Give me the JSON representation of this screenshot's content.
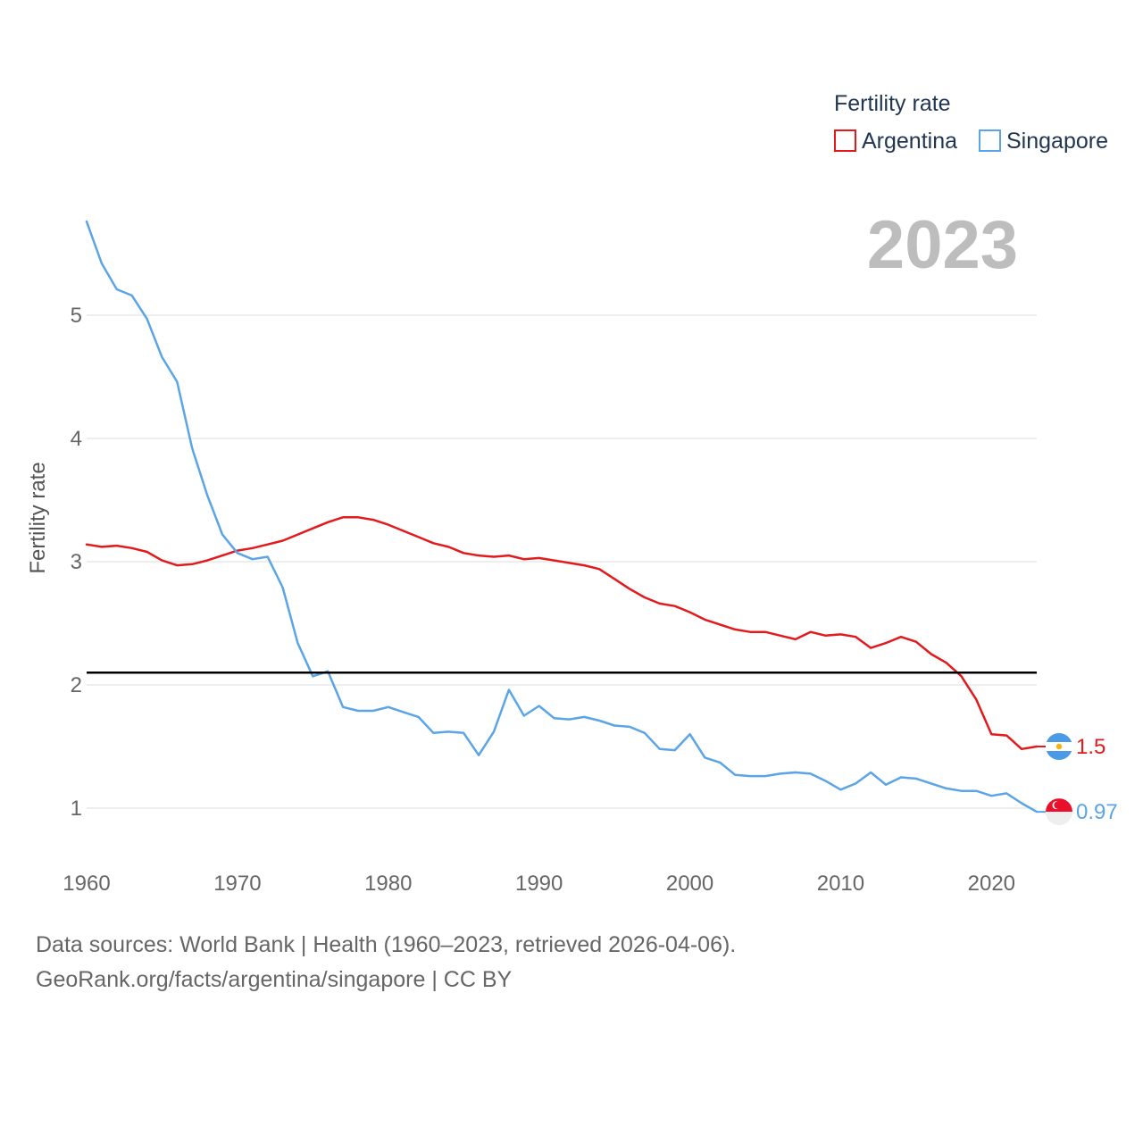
{
  "chart_data": {
    "type": "line",
    "year_label": "2023",
    "ylabel": "Fertility rate",
    "xlabel": "",
    "xlim": [
      1960,
      2023
    ],
    "ylim": [
      0.7,
      5.8
    ],
    "x_ticks": [
      "1960",
      "1970",
      "1980",
      "1990",
      "2000",
      "2010",
      "2020"
    ],
    "y_ticks": [
      "1",
      "2",
      "3",
      "4",
      "5"
    ],
    "reference_line": {
      "value": 2.1,
      "color": "#000000"
    },
    "legend": {
      "title": "Fertility rate",
      "position": "top-right"
    },
    "x": [
      1960,
      1961,
      1962,
      1963,
      1964,
      1965,
      1966,
      1967,
      1968,
      1969,
      1970,
      1971,
      1972,
      1973,
      1974,
      1975,
      1976,
      1977,
      1978,
      1979,
      1980,
      1981,
      1982,
      1983,
      1984,
      1985,
      1986,
      1987,
      1988,
      1989,
      1990,
      1991,
      1992,
      1993,
      1994,
      1995,
      1996,
      1997,
      1998,
      1999,
      2000,
      2001,
      2002,
      2003,
      2004,
      2005,
      2006,
      2007,
      2008,
      2009,
      2010,
      2011,
      2012,
      2013,
      2014,
      2015,
      2016,
      2017,
      2018,
      2019,
      2020,
      2021,
      2022,
      2023
    ],
    "series": [
      {
        "name": "Argentina",
        "color": "#e31a1c",
        "end_label": "1.5",
        "values": [
          3.14,
          3.12,
          3.13,
          3.11,
          3.08,
          3.01,
          2.97,
          2.98,
          3.01,
          3.05,
          3.09,
          3.11,
          3.14,
          3.17,
          3.22,
          3.27,
          3.32,
          3.36,
          3.36,
          3.34,
          3.3,
          3.25,
          3.2,
          3.15,
          3.12,
          3.07,
          3.05,
          3.04,
          3.05,
          3.02,
          3.03,
          3.01,
          2.99,
          2.97,
          2.94,
          2.86,
          2.78,
          2.71,
          2.66,
          2.64,
          2.59,
          2.53,
          2.49,
          2.45,
          2.43,
          2.43,
          2.4,
          2.37,
          2.43,
          2.4,
          2.41,
          2.39,
          2.3,
          2.34,
          2.39,
          2.35,
          2.25,
          2.18,
          2.07,
          1.88,
          1.6,
          1.59,
          1.48,
          1.5
        ]
      },
      {
        "name": "Singapore",
        "color": "#5ba4e6",
        "end_label": "0.97",
        "values": [
          5.76,
          5.42,
          5.21,
          5.16,
          4.97,
          4.66,
          4.46,
          3.92,
          3.54,
          3.22,
          3.07,
          3.02,
          3.04,
          2.79,
          2.34,
          2.07,
          2.11,
          1.82,
          1.79,
          1.79,
          1.82,
          1.78,
          1.74,
          1.61,
          1.62,
          1.61,
          1.43,
          1.62,
          1.96,
          1.75,
          1.83,
          1.73,
          1.72,
          1.74,
          1.71,
          1.67,
          1.66,
          1.61,
          1.48,
          1.47,
          1.6,
          1.41,
          1.37,
          1.27,
          1.26,
          1.26,
          1.28,
          1.29,
          1.28,
          1.22,
          1.15,
          1.2,
          1.29,
          1.19,
          1.25,
          1.24,
          1.2,
          1.16,
          1.14,
          1.14,
          1.1,
          1.12,
          1.04,
          0.97
        ]
      }
    ]
  },
  "footer": {
    "line1": "Data sources: World Bank | Health (1960–2023, retrieved 2026-04-06).",
    "line2": "GeoRank.org/facts/argentina/singapore | CC BY"
  }
}
